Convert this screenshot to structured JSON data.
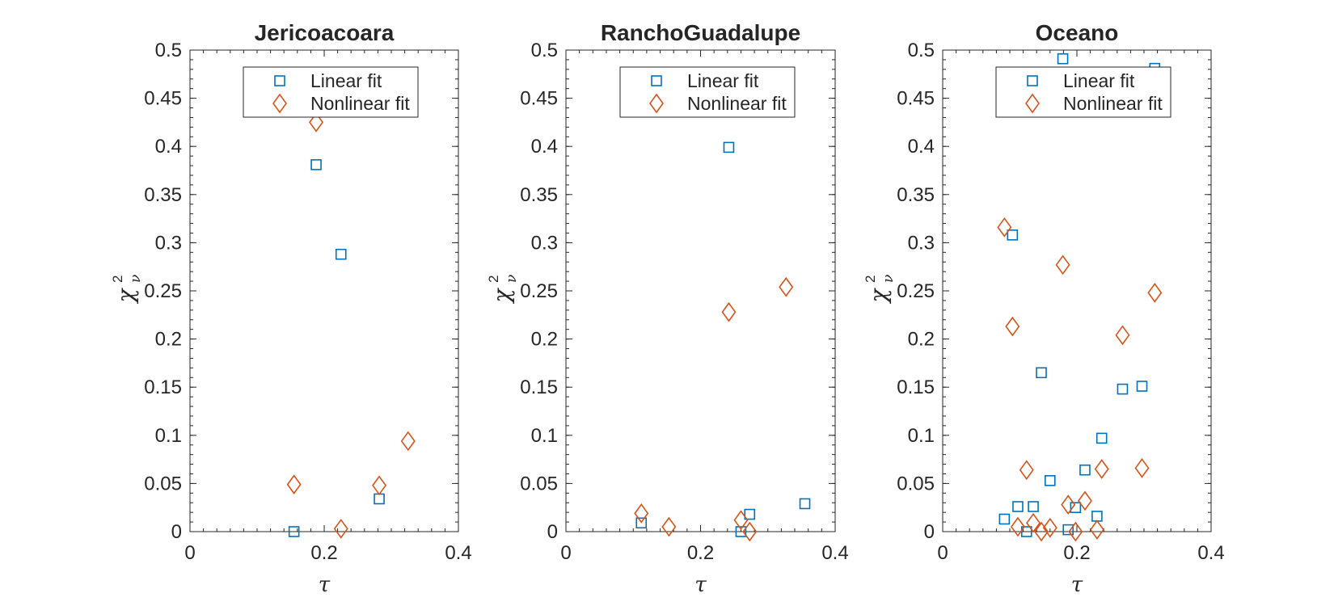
{
  "colors": {
    "linear": "#0072BD",
    "nonlinear": "#D95319",
    "axis": "#262626"
  },
  "legend": {
    "linear_label": "Linear fit",
    "nonlinear_label": "Nonlinear fit",
    "placement": "top-right"
  },
  "axis_labels": {
    "x_symbol": "τ",
    "y_base": "χ",
    "y_sup": "2",
    "y_sub": "ν"
  },
  "chart_data": [
    {
      "type": "scatter",
      "title": "Jericoacoara",
      "xlabel": "τ",
      "ylabel": "χ²ν",
      "xlim": [
        0,
        0.4
      ],
      "ylim": [
        0,
        0.5
      ],
      "xticks": [
        "0",
        "0.2",
        "0.4"
      ],
      "yticks": [
        "0",
        "0.05",
        "0.1",
        "0.15",
        "0.2",
        "0.25",
        "0.3",
        "0.35",
        "0.4",
        "0.45",
        "0.5"
      ],
      "grid": false,
      "series": [
        {
          "name": "Linear fit",
          "marker": "square",
          "x": [
            0.155,
            0.188,
            0.225,
            0.282
          ],
          "y": [
            0.0,
            0.381,
            0.288,
            0.034
          ]
        },
        {
          "name": "Nonlinear fit",
          "marker": "diamond",
          "x": [
            0.155,
            0.188,
            0.225,
            0.282,
            0.325
          ],
          "y": [
            0.049,
            0.425,
            0.003,
            0.048,
            0.094
          ]
        }
      ]
    },
    {
      "type": "scatter",
      "title": "RanchoGuadalupe",
      "xlabel": "τ",
      "ylabel": "χ²ν",
      "xlim": [
        0,
        0.4
      ],
      "ylim": [
        0,
        0.5
      ],
      "xticks": [
        "0",
        "0.2",
        "0.4"
      ],
      "yticks": [
        "0",
        "0.05",
        "0.1",
        "0.15",
        "0.2",
        "0.25",
        "0.3",
        "0.35",
        "0.4",
        "0.45",
        "0.5"
      ],
      "grid": false,
      "series": [
        {
          "name": "Linear fit",
          "marker": "square",
          "x": [
            0.112,
            0.242,
            0.26,
            0.273,
            0.355
          ],
          "y": [
            0.009,
            0.399,
            0.0,
            0.018,
            0.029
          ]
        },
        {
          "name": "Nonlinear fit",
          "marker": "diamond",
          "x": [
            0.112,
            0.153,
            0.242,
            0.26,
            0.273,
            0.327
          ],
          "y": [
            0.019,
            0.005,
            0.228,
            0.012,
            0.0,
            0.254
          ]
        }
      ]
    },
    {
      "type": "scatter",
      "title": "Oceano",
      "xlabel": "τ",
      "ylabel": "χ²ν",
      "xlim": [
        0,
        0.4
      ],
      "ylim": [
        0,
        0.5
      ],
      "xticks": [
        "0",
        "0.2",
        "0.4"
      ],
      "yticks": [
        "0",
        "0.05",
        "0.1",
        "0.15",
        "0.2",
        "0.25",
        "0.3",
        "0.35",
        "0.4",
        "0.45",
        "0.5"
      ],
      "grid": false,
      "series": [
        {
          "name": "Linear fit",
          "marker": "square",
          "x": [
            0.092,
            0.104,
            0.112,
            0.125,
            0.135,
            0.147,
            0.16,
            0.179,
            0.187,
            0.198,
            0.212,
            0.23,
            0.237,
            0.268,
            0.297,
            0.316
          ],
          "y": [
            0.013,
            0.308,
            0.026,
            0.0,
            0.026,
            0.165,
            0.053,
            0.491,
            0.002,
            0.025,
            0.064,
            0.016,
            0.097,
            0.148,
            0.151,
            0.481
          ]
        },
        {
          "name": "Nonlinear fit",
          "marker": "diamond",
          "x": [
            0.092,
            0.104,
            0.112,
            0.125,
            0.135,
            0.147,
            0.16,
            0.179,
            0.187,
            0.198,
            0.212,
            0.23,
            0.237,
            0.268,
            0.297,
            0.316
          ],
          "y": [
            0.316,
            0.213,
            0.005,
            0.064,
            0.009,
            0.0,
            0.004,
            0.277,
            0.028,
            0.0,
            0.032,
            0.002,
            0.065,
            0.204,
            0.066,
            0.248
          ]
        }
      ]
    }
  ]
}
